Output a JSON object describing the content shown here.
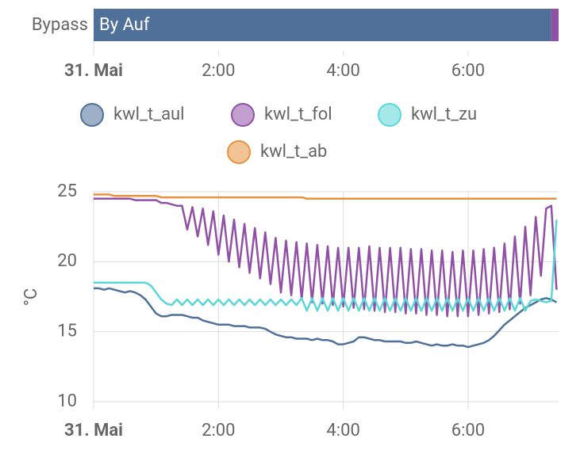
{
  "chart_data": [
    {
      "type": "timeline",
      "label": "Bypass",
      "segments": [
        {
          "name": "By Auf",
          "start": 0,
          "end": 440,
          "color": "#4e7099"
        },
        {
          "start": 440,
          "end": 447,
          "color": "#9050a5"
        }
      ],
      "xlim": [
        0,
        447
      ],
      "xticks": [
        {
          "value": 0,
          "label": "31. Mai"
        },
        {
          "value": 120,
          "label": "2:00"
        },
        {
          "value": 240,
          "label": "4:00"
        },
        {
          "value": 360,
          "label": "6:00"
        }
      ]
    },
    {
      "type": "line",
      "y_label": "°C",
      "grid": true,
      "xlim": [
        0,
        447
      ],
      "ylim": [
        10,
        25
      ],
      "yticks": [
        10,
        15,
        20,
        25
      ],
      "xticks": [
        {
          "value": 0,
          "label": "31. Mai"
        },
        {
          "value": 120,
          "label": "2:00"
        },
        {
          "value": 240,
          "label": "4:00"
        },
        {
          "value": 360,
          "label": "6:00"
        }
      ],
      "x": [
        0,
        5,
        10,
        15,
        20,
        25,
        30,
        35,
        40,
        45,
        50,
        55,
        60,
        65,
        70,
        75,
        80,
        85,
        90,
        95,
        100,
        105,
        110,
        115,
        120,
        125,
        130,
        135,
        140,
        145,
        150,
        155,
        160,
        165,
        170,
        175,
        180,
        185,
        190,
        195,
        200,
        205,
        210,
        215,
        220,
        225,
        230,
        235,
        240,
        245,
        250,
        255,
        260,
        265,
        270,
        275,
        280,
        285,
        290,
        295,
        300,
        305,
        310,
        315,
        320,
        325,
        330,
        335,
        340,
        345,
        350,
        355,
        360,
        365,
        370,
        375,
        380,
        385,
        390,
        395,
        400,
        405,
        410,
        415,
        420,
        425,
        430,
        435,
        440,
        445
      ],
      "series": [
        {
          "name": "kwl_t_aul",
          "color": "#4e7099",
          "values": [
            18.1,
            18.1,
            18.0,
            18.1,
            18.0,
            17.9,
            17.8,
            17.9,
            17.8,
            17.6,
            17.3,
            16.8,
            16.3,
            16.1,
            16.1,
            16.2,
            16.2,
            16.2,
            16.1,
            16.0,
            16.0,
            15.8,
            15.7,
            15.6,
            15.5,
            15.5,
            15.5,
            15.4,
            15.4,
            15.4,
            15.3,
            15.3,
            15.3,
            15.2,
            15.0,
            14.8,
            14.7,
            14.6,
            14.6,
            14.5,
            14.5,
            14.5,
            14.4,
            14.5,
            14.4,
            14.4,
            14.3,
            14.1,
            14.1,
            14.2,
            14.3,
            14.6,
            14.6,
            14.5,
            14.4,
            14.4,
            14.3,
            14.3,
            14.3,
            14.3,
            14.2,
            14.2,
            14.3,
            14.2,
            14.1,
            14.0,
            14.1,
            14.0,
            14.0,
            14.1,
            14.0,
            14.0,
            13.9,
            14.0,
            14.1,
            14.2,
            14.4,
            14.7,
            15.1,
            15.5,
            15.8,
            16.1,
            16.4,
            16.7,
            16.9,
            17.1,
            17.3,
            17.4,
            17.3,
            17.1
          ]
        },
        {
          "name": "kwl_t_fol",
          "color": "#9050a5",
          "values": [
            24.5,
            24.5,
            24.5,
            24.5,
            24.5,
            24.5,
            24.5,
            24.5,
            24.4,
            24.4,
            24.4,
            24.4,
            24.4,
            24.2,
            24.2,
            24.1,
            24.0,
            24.0,
            22.3,
            23.9,
            21.8,
            23.8,
            21.2,
            23.6,
            20.5,
            23.3,
            20.0,
            23.0,
            19.6,
            22.7,
            19.2,
            22.4,
            18.8,
            22.1,
            18.4,
            21.7,
            17.8,
            21.5,
            17.6,
            21.4,
            17.3,
            21.3,
            17.1,
            21.2,
            17.0,
            21.1,
            16.9,
            21.0,
            16.8,
            21.0,
            16.7,
            21.0,
            16.6,
            21.1,
            16.5,
            21.0,
            16.4,
            21.0,
            16.4,
            21.0,
            16.3,
            20.9,
            16.3,
            20.9,
            16.2,
            20.8,
            16.2,
            20.8,
            16.1,
            20.7,
            16.1,
            20.8,
            16.1,
            20.8,
            16.2,
            20.9,
            16.3,
            21.0,
            16.4,
            21.3,
            16.6,
            21.8,
            17.0,
            22.5,
            17.6,
            23.2,
            19.0,
            23.8,
            24.0,
            18.0
          ]
        },
        {
          "name": "kwl_t_zu",
          "color": "#5bd6d9",
          "values": [
            18.5,
            18.5,
            18.5,
            18.5,
            18.5,
            18.5,
            18.5,
            18.5,
            18.5,
            18.5,
            18.5,
            18.3,
            17.8,
            17.3,
            17.0,
            16.9,
            17.3,
            16.9,
            17.3,
            16.9,
            17.3,
            16.9,
            17.3,
            16.9,
            17.3,
            16.9,
            17.3,
            16.9,
            17.3,
            16.9,
            17.3,
            16.9,
            17.3,
            16.9,
            17.3,
            16.9,
            17.3,
            16.9,
            17.3,
            16.9,
            17.4,
            16.5,
            17.4,
            16.5,
            17.4,
            16.5,
            17.4,
            16.5,
            17.4,
            16.5,
            17.4,
            16.5,
            17.4,
            16.5,
            17.4,
            16.5,
            17.4,
            16.5,
            17.4,
            16.5,
            17.4,
            16.5,
            17.4,
            16.5,
            17.4,
            16.5,
            17.4,
            16.5,
            17.4,
            16.5,
            17.4,
            16.5,
            17.4,
            16.5,
            17.4,
            16.5,
            17.4,
            16.5,
            17.4,
            16.5,
            17.4,
            16.5,
            17.4,
            16.5,
            17.2,
            17.3,
            17.2,
            17.1,
            17.2,
            23.0
          ]
        },
        {
          "name": "kwl_t_ab",
          "color": "#e8913e",
          "values": [
            24.8,
            24.8,
            24.8,
            24.8,
            24.7,
            24.7,
            24.7,
            24.7,
            24.7,
            24.7,
            24.7,
            24.7,
            24.7,
            24.6,
            24.6,
            24.6,
            24.6,
            24.6,
            24.6,
            24.6,
            24.6,
            24.6,
            24.6,
            24.6,
            24.6,
            24.6,
            24.6,
            24.6,
            24.6,
            24.6,
            24.6,
            24.6,
            24.6,
            24.6,
            24.6,
            24.6,
            24.6,
            24.6,
            24.6,
            24.6,
            24.6,
            24.5,
            24.5,
            24.5,
            24.5,
            24.5,
            24.5,
            24.5,
            24.5,
            24.5,
            24.5,
            24.5,
            24.5,
            24.5,
            24.5,
            24.5,
            24.5,
            24.5,
            24.5,
            24.5,
            24.5,
            24.5,
            24.5,
            24.5,
            24.5,
            24.5,
            24.5,
            24.5,
            24.5,
            24.5,
            24.5,
            24.5,
            24.5,
            24.5,
            24.5,
            24.5,
            24.5,
            24.5,
            24.5,
            24.5,
            24.5,
            24.5,
            24.5,
            24.5,
            24.5,
            24.5,
            24.5,
            24.5,
            24.5,
            24.5
          ]
        }
      ]
    }
  ]
}
